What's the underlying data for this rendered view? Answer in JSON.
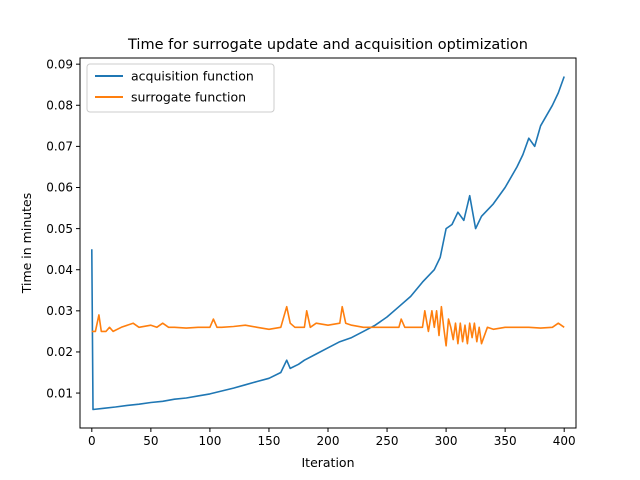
{
  "chart_data": {
    "type": "line",
    "title": "Time for surrogate update and acquisition optimization",
    "xlabel": "Iteration",
    "ylabel": "Time in minutes",
    "xlim": [
      -10,
      410
    ],
    "ylim": [
      0.0015,
      0.0915
    ],
    "xticks": [
      0,
      50,
      100,
      150,
      200,
      250,
      300,
      350,
      400
    ],
    "yticks": [
      0.01,
      0.02,
      0.03,
      0.04,
      0.05,
      0.06,
      0.07,
      0.08,
      0.09
    ],
    "xtick_labels": [
      "0",
      "50",
      "100",
      "150",
      "200",
      "250",
      "300",
      "350",
      "400"
    ],
    "ytick_labels": [
      "0.01",
      "0.02",
      "0.03",
      "0.04",
      "0.05",
      "0.06",
      "0.07",
      "0.08",
      "0.09"
    ],
    "grid": false,
    "legend_position": "upper-left",
    "series": [
      {
        "name": "acquisition function",
        "color": "#1f77b4",
        "x": [
          0,
          1,
          10,
          20,
          30,
          40,
          50,
          60,
          70,
          80,
          90,
          100,
          110,
          120,
          130,
          140,
          150,
          160,
          165,
          168,
          175,
          180,
          190,
          200,
          210,
          220,
          230,
          240,
          250,
          260,
          270,
          280,
          290,
          295,
          300,
          305,
          310,
          315,
          320,
          325,
          330,
          340,
          350,
          360,
          365,
          370,
          375,
          380,
          390,
          395,
          400
        ],
        "y": [
          0.045,
          0.006,
          0.0063,
          0.0066,
          0.007,
          0.0073,
          0.0077,
          0.008,
          0.0085,
          0.0088,
          0.0093,
          0.0098,
          0.0105,
          0.0112,
          0.012,
          0.0128,
          0.0136,
          0.015,
          0.018,
          0.016,
          0.017,
          0.018,
          0.0195,
          0.021,
          0.0225,
          0.0235,
          0.025,
          0.0265,
          0.0285,
          0.031,
          0.0335,
          0.037,
          0.04,
          0.043,
          0.05,
          0.051,
          0.054,
          0.052,
          0.058,
          0.05,
          0.053,
          0.056,
          0.06,
          0.065,
          0.068,
          0.072,
          0.07,
          0.075,
          0.08,
          0.083,
          0.087
        ]
      },
      {
        "name": "surrogate function",
        "color": "#ff7f0e",
        "x": [
          0,
          3,
          6,
          8,
          12,
          15,
          18,
          25,
          35,
          40,
          50,
          55,
          60,
          65,
          70,
          80,
          90,
          100,
          103,
          106,
          110,
          120,
          130,
          140,
          150,
          160,
          165,
          168,
          172,
          180,
          182,
          185,
          190,
          200,
          210,
          212,
          215,
          220,
          230,
          240,
          250,
          260,
          262,
          265,
          270,
          280,
          282,
          285,
          288,
          290,
          292,
          294,
          296,
          298,
          300,
          302,
          304,
          306,
          308,
          310,
          312,
          314,
          316,
          318,
          320,
          322,
          324,
          326,
          328,
          330,
          335,
          340,
          350,
          360,
          370,
          380,
          390,
          395,
          400
        ],
        "y": [
          0.025,
          0.025,
          0.029,
          0.025,
          0.025,
          0.026,
          0.025,
          0.026,
          0.027,
          0.026,
          0.0265,
          0.026,
          0.027,
          0.026,
          0.026,
          0.0258,
          0.026,
          0.026,
          0.028,
          0.026,
          0.026,
          0.0262,
          0.0265,
          0.026,
          0.0255,
          0.026,
          0.031,
          0.027,
          0.026,
          0.026,
          0.03,
          0.026,
          0.027,
          0.0265,
          0.027,
          0.031,
          0.027,
          0.0265,
          0.026,
          0.026,
          0.026,
          0.026,
          0.028,
          0.026,
          0.026,
          0.026,
          0.03,
          0.025,
          0.03,
          0.026,
          0.03,
          0.024,
          0.031,
          0.026,
          0.0215,
          0.028,
          0.026,
          0.023,
          0.027,
          0.022,
          0.027,
          0.0225,
          0.0265,
          0.022,
          0.027,
          0.0235,
          0.027,
          0.0225,
          0.026,
          0.022,
          0.026,
          0.0255,
          0.026,
          0.026,
          0.026,
          0.0258,
          0.026,
          0.027,
          0.026
        ]
      }
    ]
  }
}
